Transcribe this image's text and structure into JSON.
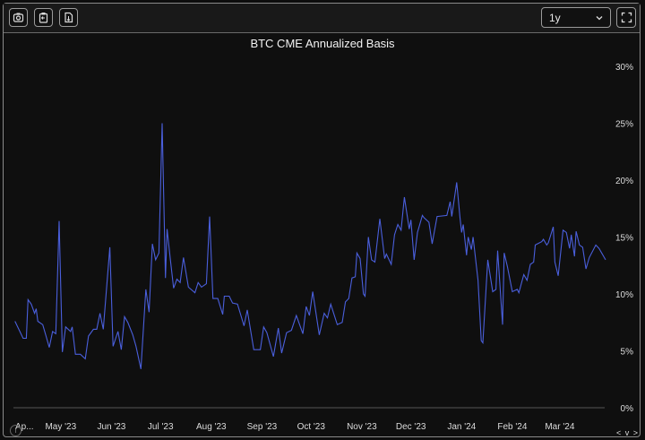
{
  "toolbar": {
    "buttons": [
      {
        "icon": "camera-icon"
      },
      {
        "icon": "clipboard-icon"
      },
      {
        "icon": "download-file-icon"
      }
    ],
    "range_select": {
      "value": "1y",
      "icon": "chevron-down-icon"
    },
    "fullscreen_icon": "fullscreen-icon"
  },
  "footer": {
    "info_icon": "i",
    "nav_label": "< v >"
  },
  "chart_data": {
    "type": "line",
    "title": "BTC CME Annualized Basis",
    "xlabel": "",
    "ylabel": "",
    "xlim": [
      "2023-04-01",
      "2024-04-01"
    ],
    "ylim": [
      0,
      30
    ],
    "y_axis_side": "right",
    "y_ticks": [
      "0%",
      "5%",
      "10%",
      "15%",
      "20%",
      "25%",
      "30%"
    ],
    "x_ticks": [
      {
        "date": "2023-04-01",
        "label": "Ap..."
      },
      {
        "date": "2023-05-01",
        "label": "May '23"
      },
      {
        "date": "2023-06-01",
        "label": "Jun '23"
      },
      {
        "date": "2023-07-01",
        "label": "Jul '23"
      },
      {
        "date": "2023-08-01",
        "label": "Aug '23"
      },
      {
        "date": "2023-09-01",
        "label": "Sep '23"
      },
      {
        "date": "2023-10-01",
        "label": "Oct '23"
      },
      {
        "date": "2023-11-01",
        "label": "Nov '23"
      },
      {
        "date": "2023-12-01",
        "label": "Dec '23"
      },
      {
        "date": "2024-01-01",
        "label": "Jan '24"
      },
      {
        "date": "2024-02-01",
        "label": "Feb '24"
      },
      {
        "date": "2024-03-01",
        "label": "Mar '24"
      }
    ],
    "grid": "zero line only",
    "line_color": "#4a5fdc",
    "series": [
      {
        "x": [
          "2023-04-03",
          "2023-04-08",
          "2023-04-10",
          "2023-04-11",
          "2023-04-13",
          "2023-04-15",
          "2023-04-16",
          "2023-04-17",
          "2023-04-20",
          "2023-04-22",
          "2023-04-24",
          "2023-04-26",
          "2023-04-28",
          "2023-04-30",
          "2023-05-02",
          "2023-05-04",
          "2023-05-07",
          "2023-05-08",
          "2023-05-10",
          "2023-05-13",
          "2023-05-16",
          "2023-05-18",
          "2023-05-21",
          "2023-05-23",
          "2023-05-25",
          "2023-05-27",
          "2023-05-31",
          "2023-06-02",
          "2023-06-05",
          "2023-06-07",
          "2023-06-09",
          "2023-06-11",
          "2023-06-14",
          "2023-06-16",
          "2023-06-19",
          "2023-06-22",
          "2023-06-24",
          "2023-06-26",
          "2023-06-28",
          "2023-06-30",
          "2023-07-02",
          "2023-07-04",
          "2023-07-05",
          "2023-07-07",
          "2023-07-09",
          "2023-07-11",
          "2023-07-13",
          "2023-07-15",
          "2023-07-18",
          "2023-07-22",
          "2023-07-24",
          "2023-07-26",
          "2023-07-29",
          "2023-07-31",
          "2023-08-02",
          "2023-08-05",
          "2023-08-08",
          "2023-08-09",
          "2023-08-12",
          "2023-08-14",
          "2023-08-17",
          "2023-08-21",
          "2023-08-23",
          "2023-08-27",
          "2023-08-31",
          "2023-09-02",
          "2023-09-04",
          "2023-09-08",
          "2023-09-11",
          "2023-09-13",
          "2023-09-16",
          "2023-09-19",
          "2023-09-22",
          "2023-09-26",
          "2023-09-28",
          "2023-09-30",
          "2023-10-02",
          "2023-10-06",
          "2023-10-09",
          "2023-10-11",
          "2023-10-13",
          "2023-10-17",
          "2023-10-20",
          "2023-10-22",
          "2023-10-24",
          "2023-10-26",
          "2023-10-28",
          "2023-10-29",
          "2023-10-31",
          "2023-11-02",
          "2023-11-03",
          "2023-11-05",
          "2023-11-07",
          "2023-11-09",
          "2023-11-12",
          "2023-11-15",
          "2023-11-16",
          "2023-11-19",
          "2023-11-21",
          "2023-11-23",
          "2023-11-25",
          "2023-11-27",
          "2023-11-30",
          "2023-12-01",
          "2023-12-03",
          "2023-12-05",
          "2023-12-08",
          "2023-12-09",
          "2023-12-12",
          "2023-12-14",
          "2023-12-17",
          "2023-12-23",
          "2023-12-25",
          "2023-12-26",
          "2023-12-29",
          "2023-12-31",
          "2024-01-01",
          "2024-01-02",
          "2024-01-04",
          "2024-01-05",
          "2024-01-07",
          "2024-01-08",
          "2024-01-11",
          "2024-01-13",
          "2024-01-14",
          "2024-01-17",
          "2024-01-20",
          "2024-01-22",
          "2024-01-23",
          "2024-01-26",
          "2024-01-27",
          "2024-01-29",
          "2024-02-01",
          "2024-02-04",
          "2024-02-05",
          "2024-02-08",
          "2024-02-10",
          "2024-02-12",
          "2024-02-14",
          "2024-02-15",
          "2024-02-19",
          "2024-02-20",
          "2024-02-22",
          "2024-02-23",
          "2024-02-26",
          "2024-02-27",
          "2024-02-29",
          "2024-03-03",
          "2024-03-05",
          "2024-03-07",
          "2024-03-08",
          "2024-03-10",
          "2024-03-11",
          "2024-03-13",
          "2024-03-15",
          "2024-03-17",
          "2024-03-19",
          "2024-03-23",
          "2024-03-25",
          "2024-03-29"
        ],
        "y": [
          7.6,
          6.1,
          6.1,
          9.5,
          9.1,
          8.3,
          8.7,
          7.6,
          7.3,
          6.3,
          5.3,
          6.7,
          6.5,
          16.4,
          4.9,
          7.1,
          6.7,
          7.1,
          4.7,
          4.7,
          4.3,
          6.3,
          6.9,
          6.9,
          8.3,
          6.9,
          14.1,
          5.4,
          6.7,
          5.1,
          8.0,
          7.5,
          6.4,
          5.4,
          3.4,
          10.4,
          8.4,
          14.4,
          13.0,
          13.6,
          25.0,
          11.4,
          15.7,
          13.0,
          10.5,
          11.3,
          11.0,
          13.2,
          10.6,
          10.1,
          11.0,
          10.6,
          10.9,
          16.8,
          9.6,
          9.6,
          8.2,
          9.8,
          9.8,
          9.2,
          9.1,
          7.2,
          8.6,
          5.1,
          5.1,
          7.1,
          6.6,
          4.5,
          7.0,
          4.8,
          6.6,
          6.8,
          8.1,
          6.5,
          8.9,
          8.1,
          10.2,
          6.4,
          8.3,
          7.9,
          9.1,
          7.3,
          7.5,
          9.3,
          9.6,
          11.4,
          11.5,
          13.6,
          13.1,
          10.0,
          9.8,
          15.0,
          13.0,
          12.8,
          16.6,
          13.1,
          13.5,
          12.6,
          15.2,
          16.1,
          15.6,
          18.5,
          15.7,
          16.5,
          13.0,
          15.4,
          16.9,
          16.7,
          16.3,
          14.4,
          16.8,
          16.9,
          18.1,
          16.8,
          19.8,
          16.7,
          15.4,
          16.1,
          13.4,
          15.0,
          13.9,
          15.0,
          11.2,
          5.9,
          5.7,
          13.0,
          10.2,
          10.4,
          13.8,
          7.3,
          13.6,
          12.4,
          10.2,
          10.4,
          10.1,
          11.7,
          11.2,
          12.6,
          12.8,
          14.3,
          14.6,
          14.8,
          14.3,
          14.5,
          15.9,
          12.8,
          11.6,
          15.6,
          15.4,
          14.0,
          15.2,
          13.3,
          15.5,
          14.3,
          14.1,
          12.2,
          13.2,
          14.3,
          14.0,
          13.0
        ]
      }
    ]
  }
}
